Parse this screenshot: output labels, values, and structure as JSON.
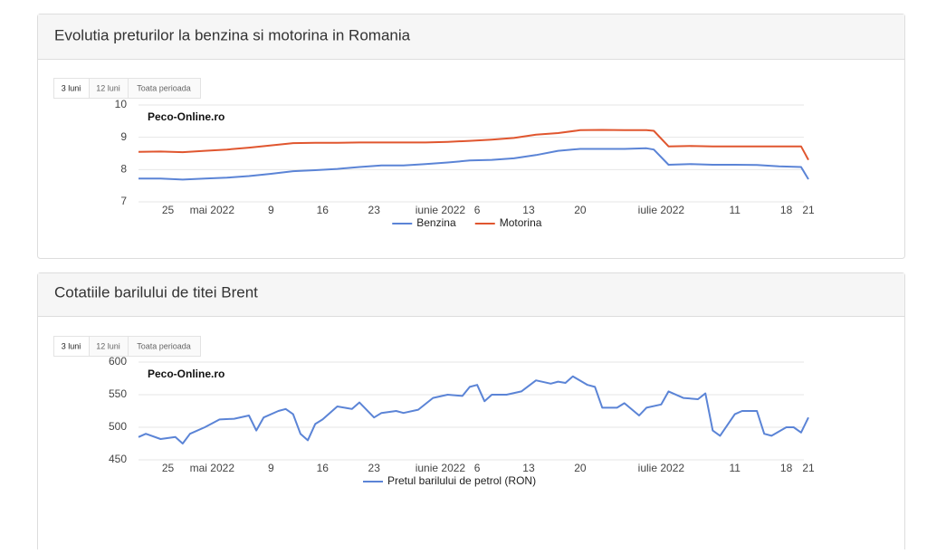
{
  "chart_data": [
    {
      "type": "line",
      "title": "Evolutia preturilor la benzina si motorina in Romania",
      "buttons": [
        "3 luni",
        "12 luni",
        "Toata perioada"
      ],
      "annotation": "Peco-Online.ro",
      "x": [
        0,
        3,
        6,
        9,
        12,
        15,
        18,
        21,
        24,
        27,
        30,
        33,
        36,
        39,
        42,
        45,
        48,
        51,
        54,
        57,
        60,
        63,
        66,
        69,
        70,
        72,
        75,
        78,
        81,
        84,
        87,
        90,
        91
      ],
      "xlim": [
        0,
        91
      ],
      "xticks": [
        {
          "value": 4,
          "label": "25"
        },
        {
          "value": 10,
          "label": "mai 2022"
        },
        {
          "value": 18,
          "label": "9"
        },
        {
          "value": 25,
          "label": "16"
        },
        {
          "value": 32,
          "label": "23"
        },
        {
          "value": 41,
          "label": "iunie 2022"
        },
        {
          "value": 46,
          "label": "6"
        },
        {
          "value": 53,
          "label": "13"
        },
        {
          "value": 60,
          "label": "20"
        },
        {
          "value": 71,
          "label": "iulie 2022"
        },
        {
          "value": 81,
          "label": "11"
        },
        {
          "value": 88,
          "label": "18"
        },
        {
          "value": 91,
          "label": "21"
        }
      ],
      "ylim": [
        7,
        10
      ],
      "yticks": [
        7,
        8,
        9,
        10
      ],
      "grid": true,
      "series": [
        {
          "name": "Benzina",
          "color": "#5b84d6",
          "values": [
            7.72,
            7.72,
            7.69,
            7.72,
            7.75,
            7.8,
            7.87,
            7.95,
            7.98,
            8.02,
            8.08,
            8.13,
            8.13,
            8.17,
            8.22,
            8.28,
            8.3,
            8.35,
            8.45,
            8.58,
            8.64,
            8.64,
            8.64,
            8.66,
            8.62,
            8.15,
            8.17,
            8.15,
            8.15,
            8.14,
            8.1,
            8.08,
            7.7
          ]
        },
        {
          "name": "Motorina",
          "color": "#e0562f",
          "values": [
            8.55,
            8.56,
            8.54,
            8.58,
            8.62,
            8.68,
            8.75,
            8.82,
            8.83,
            8.83,
            8.84,
            8.84,
            8.84,
            8.84,
            8.86,
            8.89,
            8.93,
            8.98,
            9.08,
            9.13,
            9.22,
            9.23,
            9.22,
            9.22,
            9.2,
            8.72,
            8.73,
            8.72,
            8.72,
            8.72,
            8.72,
            8.72,
            8.3
          ]
        }
      ]
    },
    {
      "type": "line",
      "title": "Cotatiile barilului de titei Brent",
      "buttons": [
        "3 luni",
        "12 luni",
        "Toata perioada"
      ],
      "annotation": "Peco-Online.ro",
      "x": [
        0,
        1,
        3,
        5,
        6,
        7,
        9,
        11,
        13,
        15,
        16,
        17,
        19,
        20,
        21,
        22,
        23,
        24,
        25,
        27,
        29,
        30,
        32,
        33,
        35,
        36,
        38,
        40,
        42,
        44,
        45,
        46,
        47,
        48,
        50,
        52,
        54,
        56,
        57,
        58,
        59,
        61,
        62,
        63,
        65,
        66,
        68,
        69,
        71,
        72,
        74,
        76,
        77,
        78,
        79,
        81,
        82,
        84,
        85,
        86,
        88,
        89,
        90,
        91
      ],
      "xlim": [
        0,
        91
      ],
      "xticks": [
        {
          "value": 4,
          "label": "25"
        },
        {
          "value": 10,
          "label": "mai 2022"
        },
        {
          "value": 18,
          "label": "9"
        },
        {
          "value": 25,
          "label": "16"
        },
        {
          "value": 32,
          "label": "23"
        },
        {
          "value": 41,
          "label": "iunie 2022"
        },
        {
          "value": 46,
          "label": "6"
        },
        {
          "value": 53,
          "label": "13"
        },
        {
          "value": 60,
          "label": "20"
        },
        {
          "value": 71,
          "label": "iulie 2022"
        },
        {
          "value": 81,
          "label": "11"
        },
        {
          "value": 88,
          "label": "18"
        },
        {
          "value": 91,
          "label": "21"
        }
      ],
      "ylim": [
        450,
        600
      ],
      "yticks": [
        450,
        500,
        550,
        600
      ],
      "grid": true,
      "series": [
        {
          "name": "Pretul barilului de petrol (RON)",
          "color": "#5b84d6",
          "values": [
            485,
            490,
            482,
            485,
            475,
            490,
            500,
            512,
            513,
            518,
            495,
            515,
            525,
            528,
            520,
            490,
            480,
            505,
            512,
            532,
            528,
            538,
            515,
            522,
            525,
            522,
            527,
            545,
            550,
            548,
            562,
            565,
            540,
            550,
            550,
            555,
            572,
            567,
            570,
            568,
            578,
            565,
            562,
            530,
            530,
            537,
            518,
            530,
            535,
            555,
            545,
            543,
            552,
            495,
            487,
            520,
            525,
            525,
            490,
            487,
            500,
            500,
            492,
            515
          ]
        }
      ]
    }
  ]
}
